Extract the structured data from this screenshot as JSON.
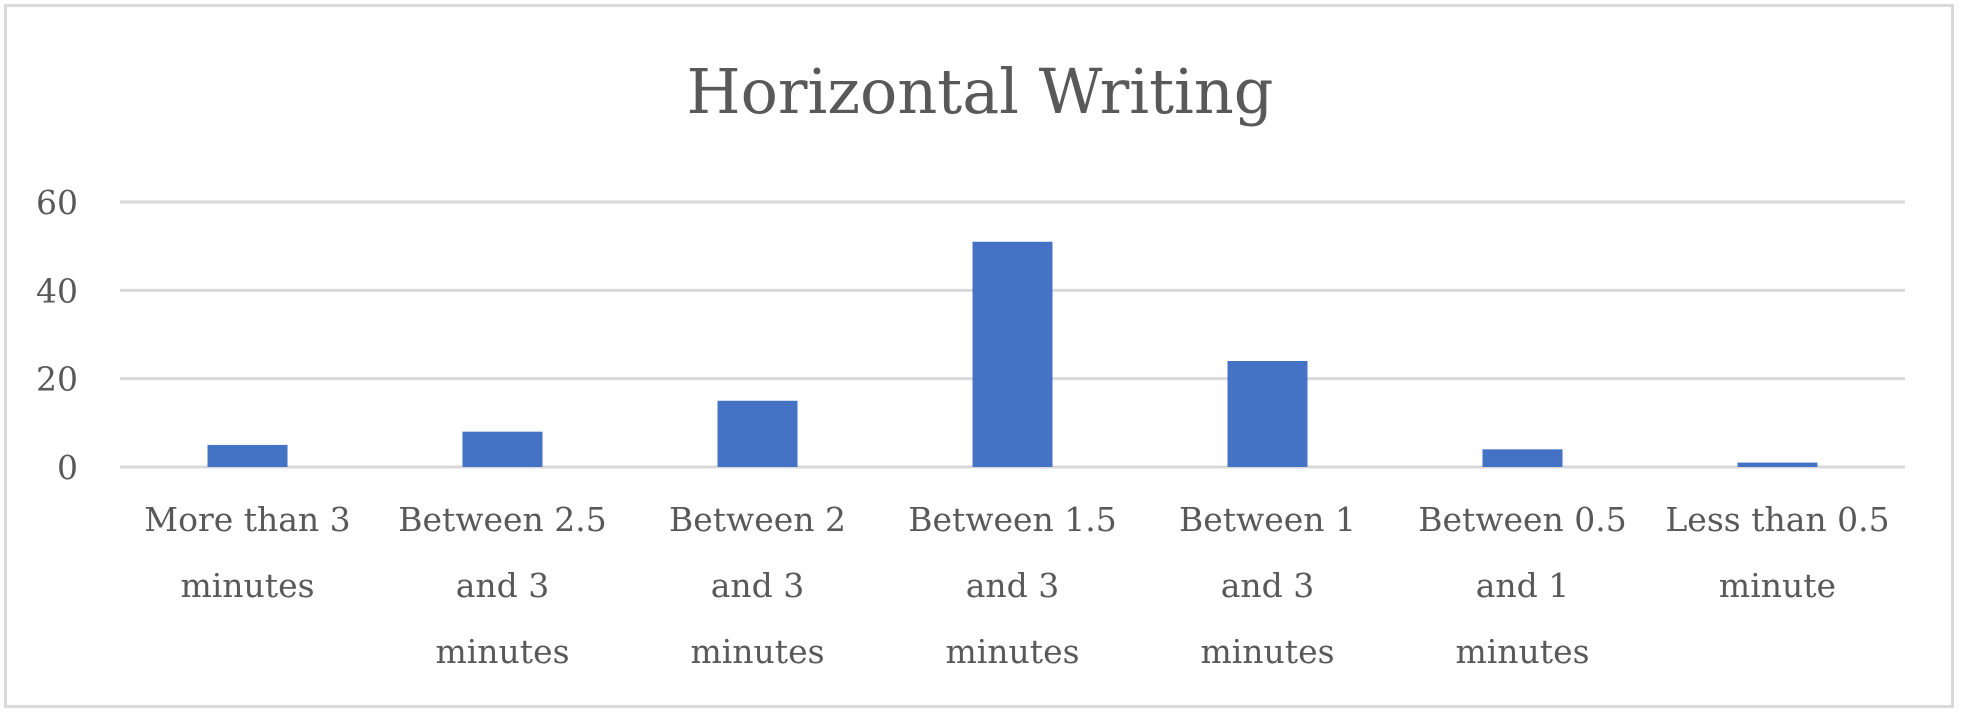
{
  "chart_data": {
    "type": "bar",
    "title": "Horizontal Writing",
    "xlabel": "",
    "ylabel": "",
    "ylim": [
      0,
      60
    ],
    "yticks": [
      0,
      20,
      40,
      60
    ],
    "grid": true,
    "bar_color": "#4472C4",
    "categories": [
      [
        "More than 3",
        "minutes"
      ],
      [
        "Between 2.5",
        "and  3",
        "minutes"
      ],
      [
        "Between 2",
        "and 3",
        "minutes"
      ],
      [
        "Between 1.5",
        "and 3",
        "minutes"
      ],
      [
        "Between 1",
        "and 3",
        "minutes"
      ],
      [
        "Between 0.5",
        "and 1",
        "minutes"
      ],
      [
        "Less than 0.5",
        "minute"
      ]
    ],
    "values": [
      5,
      8,
      15,
      51,
      24,
      4,
      1
    ]
  }
}
